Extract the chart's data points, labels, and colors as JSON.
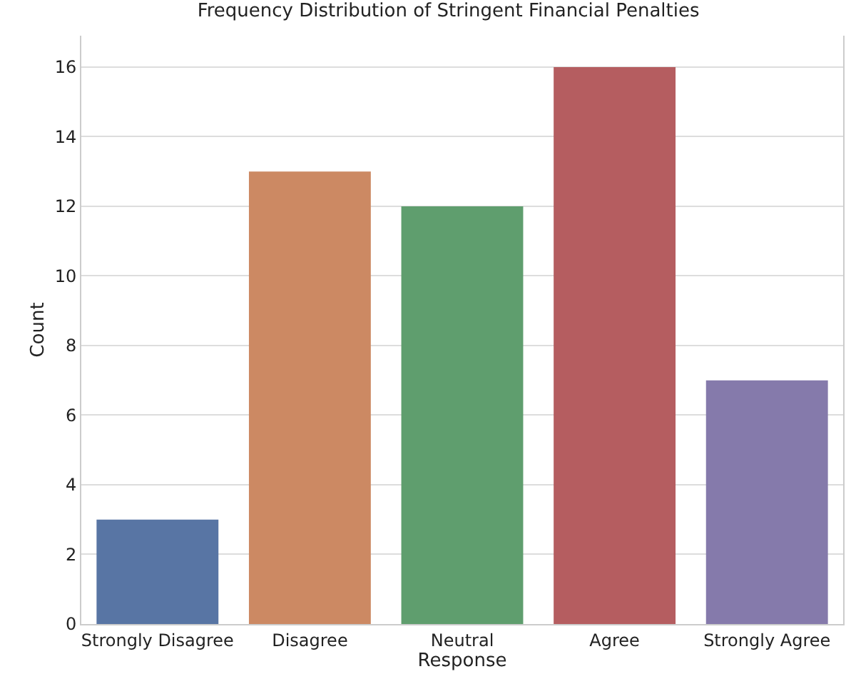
{
  "chart_data": {
    "type": "bar",
    "title": "Frequency Distribution of Stringent Financial Penalties",
    "xlabel": "Response",
    "ylabel": "Count",
    "categories": [
      "Strongly Disagree",
      "Disagree",
      "Neutral",
      "Agree",
      "Strongly Agree"
    ],
    "values": [
      3,
      13,
      12,
      16,
      7
    ],
    "colors": [
      "#5875a4",
      "#cc8963",
      "#5f9e6e",
      "#b55d60",
      "#857aab"
    ],
    "ylim": [
      0,
      16.9
    ],
    "yticks": [
      0,
      2,
      4,
      6,
      8,
      10,
      12,
      14,
      16
    ],
    "grid": "y"
  }
}
